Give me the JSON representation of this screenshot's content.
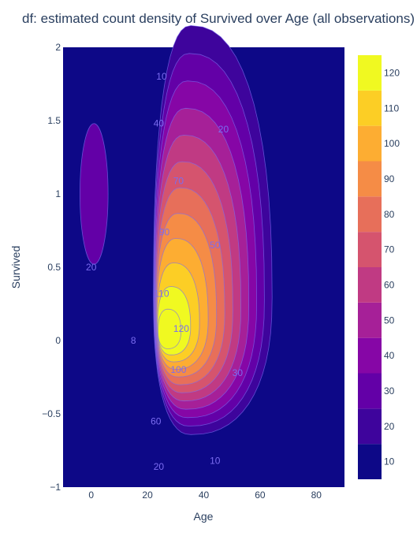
{
  "chart_data": {
    "type": "contour",
    "title": "df: estimated count density of Survived  over Age (all observations)",
    "xlabel": "Age",
    "ylabel": "Survived",
    "xlim": [
      -10,
      90
    ],
    "ylim": [
      -1,
      2
    ],
    "x_ticks": [
      "0",
      "20",
      "40",
      "60",
      "80"
    ],
    "y_ticks": [
      "−1",
      "−0.5",
      "0",
      "0.5",
      "1",
      "1.5",
      "2"
    ],
    "colorbar": {
      "ticks": [
        "10",
        "20",
        "30",
        "40",
        "50",
        "60",
        "70",
        "80",
        "90",
        "100",
        "110",
        "120"
      ],
      "max": 125,
      "colors": [
        "#0d0887",
        "#3e049c",
        "#6300a7",
        "#8606a6",
        "#a62098",
        "#c03a83",
        "#d5546e",
        "#e76f5a",
        "#f58c46",
        "#fdad32",
        "#fcce25",
        "#f0f921"
      ]
    },
    "density_peaks": [
      {
        "x": 24,
        "y": 0.03,
        "peak": 127
      },
      {
        "x": 1,
        "y": 1.0,
        "peak": 25
      }
    ],
    "contour_labels": [
      {
        "text": "10",
        "x": 25,
        "y": 1.8
      },
      {
        "text": "20",
        "x": 47,
        "y": 1.44
      },
      {
        "text": "40",
        "x": 24,
        "y": 1.48
      },
      {
        "text": "70",
        "x": 31,
        "y": 1.09
      },
      {
        "text": "90",
        "x": 26,
        "y": 0.74
      },
      {
        "text": "50",
        "x": 44,
        "y": 0.65
      },
      {
        "text": "20",
        "x": 0,
        "y": 0.5
      },
      {
        "text": "110",
        "x": 25,
        "y": 0.32
      },
      {
        "text": "120",
        "x": 32,
        "y": 0.08
      },
      {
        "text": "8",
        "x": 15,
        "y": 0.0
      },
      {
        "text": "100",
        "x": 31,
        "y": -0.2
      },
      {
        "text": "30",
        "x": 52,
        "y": -0.22
      },
      {
        "text": "60",
        "x": 23,
        "y": -0.55
      },
      {
        "text": "20",
        "x": 24,
        "y": -0.86
      },
      {
        "text": "10",
        "x": 44,
        "y": -0.82
      }
    ]
  }
}
